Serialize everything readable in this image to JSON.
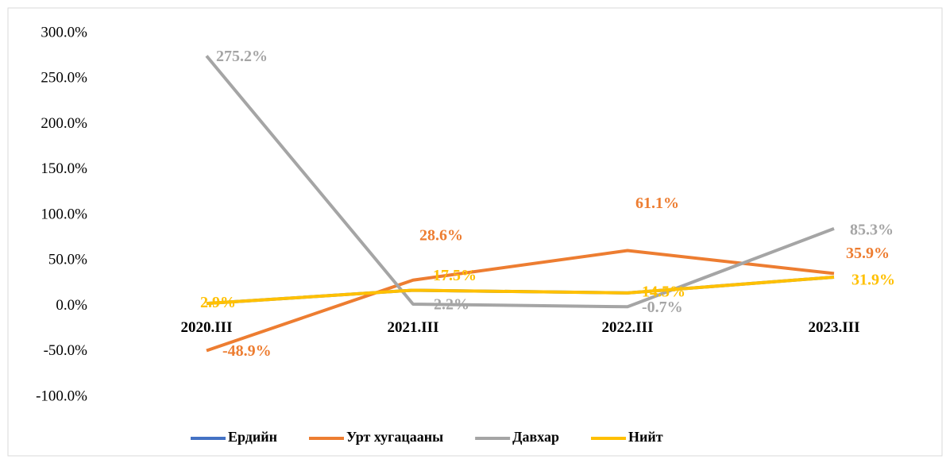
{
  "chart_data": {
    "type": "line",
    "categories": [
      "2020.III",
      "2021.III",
      "2022.III",
      "2023.III"
    ],
    "series": [
      {
        "name": "Ердийн",
        "color": "#4472c4",
        "values": [
          2.9,
          17.5,
          14.5,
          31.9
        ]
      },
      {
        "name": "Урт хугацааны",
        "color": "#ed7d31",
        "values": [
          -48.9,
          28.6,
          61.1,
          35.9
        ],
        "value_labels": [
          "-48.9%",
          "28.6%",
          "61.1%",
          "35.9%"
        ]
      },
      {
        "name": "Давхар",
        "color": "#a5a5a5",
        "values": [
          275.2,
          2.2,
          -0.7,
          85.3
        ],
        "value_labels": [
          "275.2%",
          "2.2%",
          "-0.7%",
          "85.3%"
        ]
      },
      {
        "name": "Нийт",
        "color": "#ffc000",
        "values": [
          2.9,
          17.5,
          14.5,
          31.9
        ],
        "value_labels": [
          "2.9%",
          "17.5%",
          "14.5%",
          "31.9%"
        ]
      }
    ],
    "ylim": [
      -100,
      300
    ],
    "yticks": [
      {
        "value": -100,
        "label": "-100.0%"
      },
      {
        "value": -50,
        "label": "-50.0%"
      },
      {
        "value": 0,
        "label": "0.0%"
      },
      {
        "value": 50,
        "label": "50.0%"
      },
      {
        "value": 100,
        "label": "100.0%"
      },
      {
        "value": 150,
        "label": "150.0%"
      },
      {
        "value": 200,
        "label": "200.0%"
      },
      {
        "value": 250,
        "label": "250.0%"
      },
      {
        "value": 300,
        "label": "300.0%"
      }
    ],
    "legend": "bottom"
  }
}
